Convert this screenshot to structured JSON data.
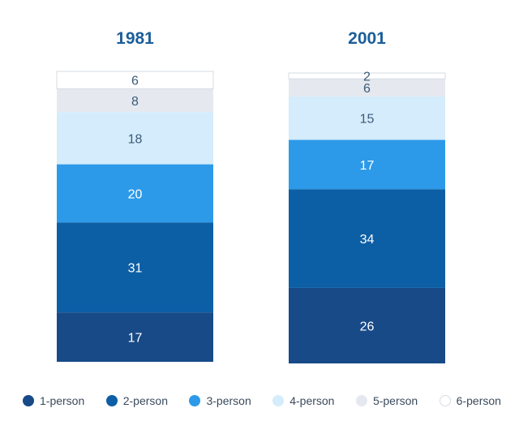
{
  "chart_data": {
    "type": "bar",
    "stacked": true,
    "categories": [
      "1981",
      "2001"
    ],
    "series": [
      {
        "name": "1-person",
        "color": "#174a87",
        "values": [
          17,
          26
        ]
      },
      {
        "name": "2-person",
        "color": "#0d5fa5",
        "values": [
          31,
          34
        ]
      },
      {
        "name": "3-person",
        "color": "#2c9ae8",
        "values": [
          20,
          17
        ]
      },
      {
        "name": "4-person",
        "color": "#d4ecfb",
        "values": [
          18,
          15
        ]
      },
      {
        "name": "5-person",
        "color": "#e5e9ef",
        "values": [
          8,
          6
        ]
      },
      {
        "name": "6-person",
        "color": "#ffffff",
        "values": [
          6,
          2
        ]
      }
    ],
    "title": "",
    "xlabel": "",
    "ylabel": "",
    "ylim": [
      0,
      100
    ],
    "grid": false,
    "legend_position": "bottom"
  },
  "legend": {
    "items": [
      {
        "label": "1-person",
        "color": "#174a87"
      },
      {
        "label": "2-person",
        "color": "#0d5fa5"
      },
      {
        "label": "3-person",
        "color": "#2c9ae8"
      },
      {
        "label": "4-person",
        "color": "#d4ecfb"
      },
      {
        "label": "5-person",
        "color": "#e5e9ef"
      },
      {
        "label": "6-person",
        "color": "#ffffff"
      }
    ]
  }
}
